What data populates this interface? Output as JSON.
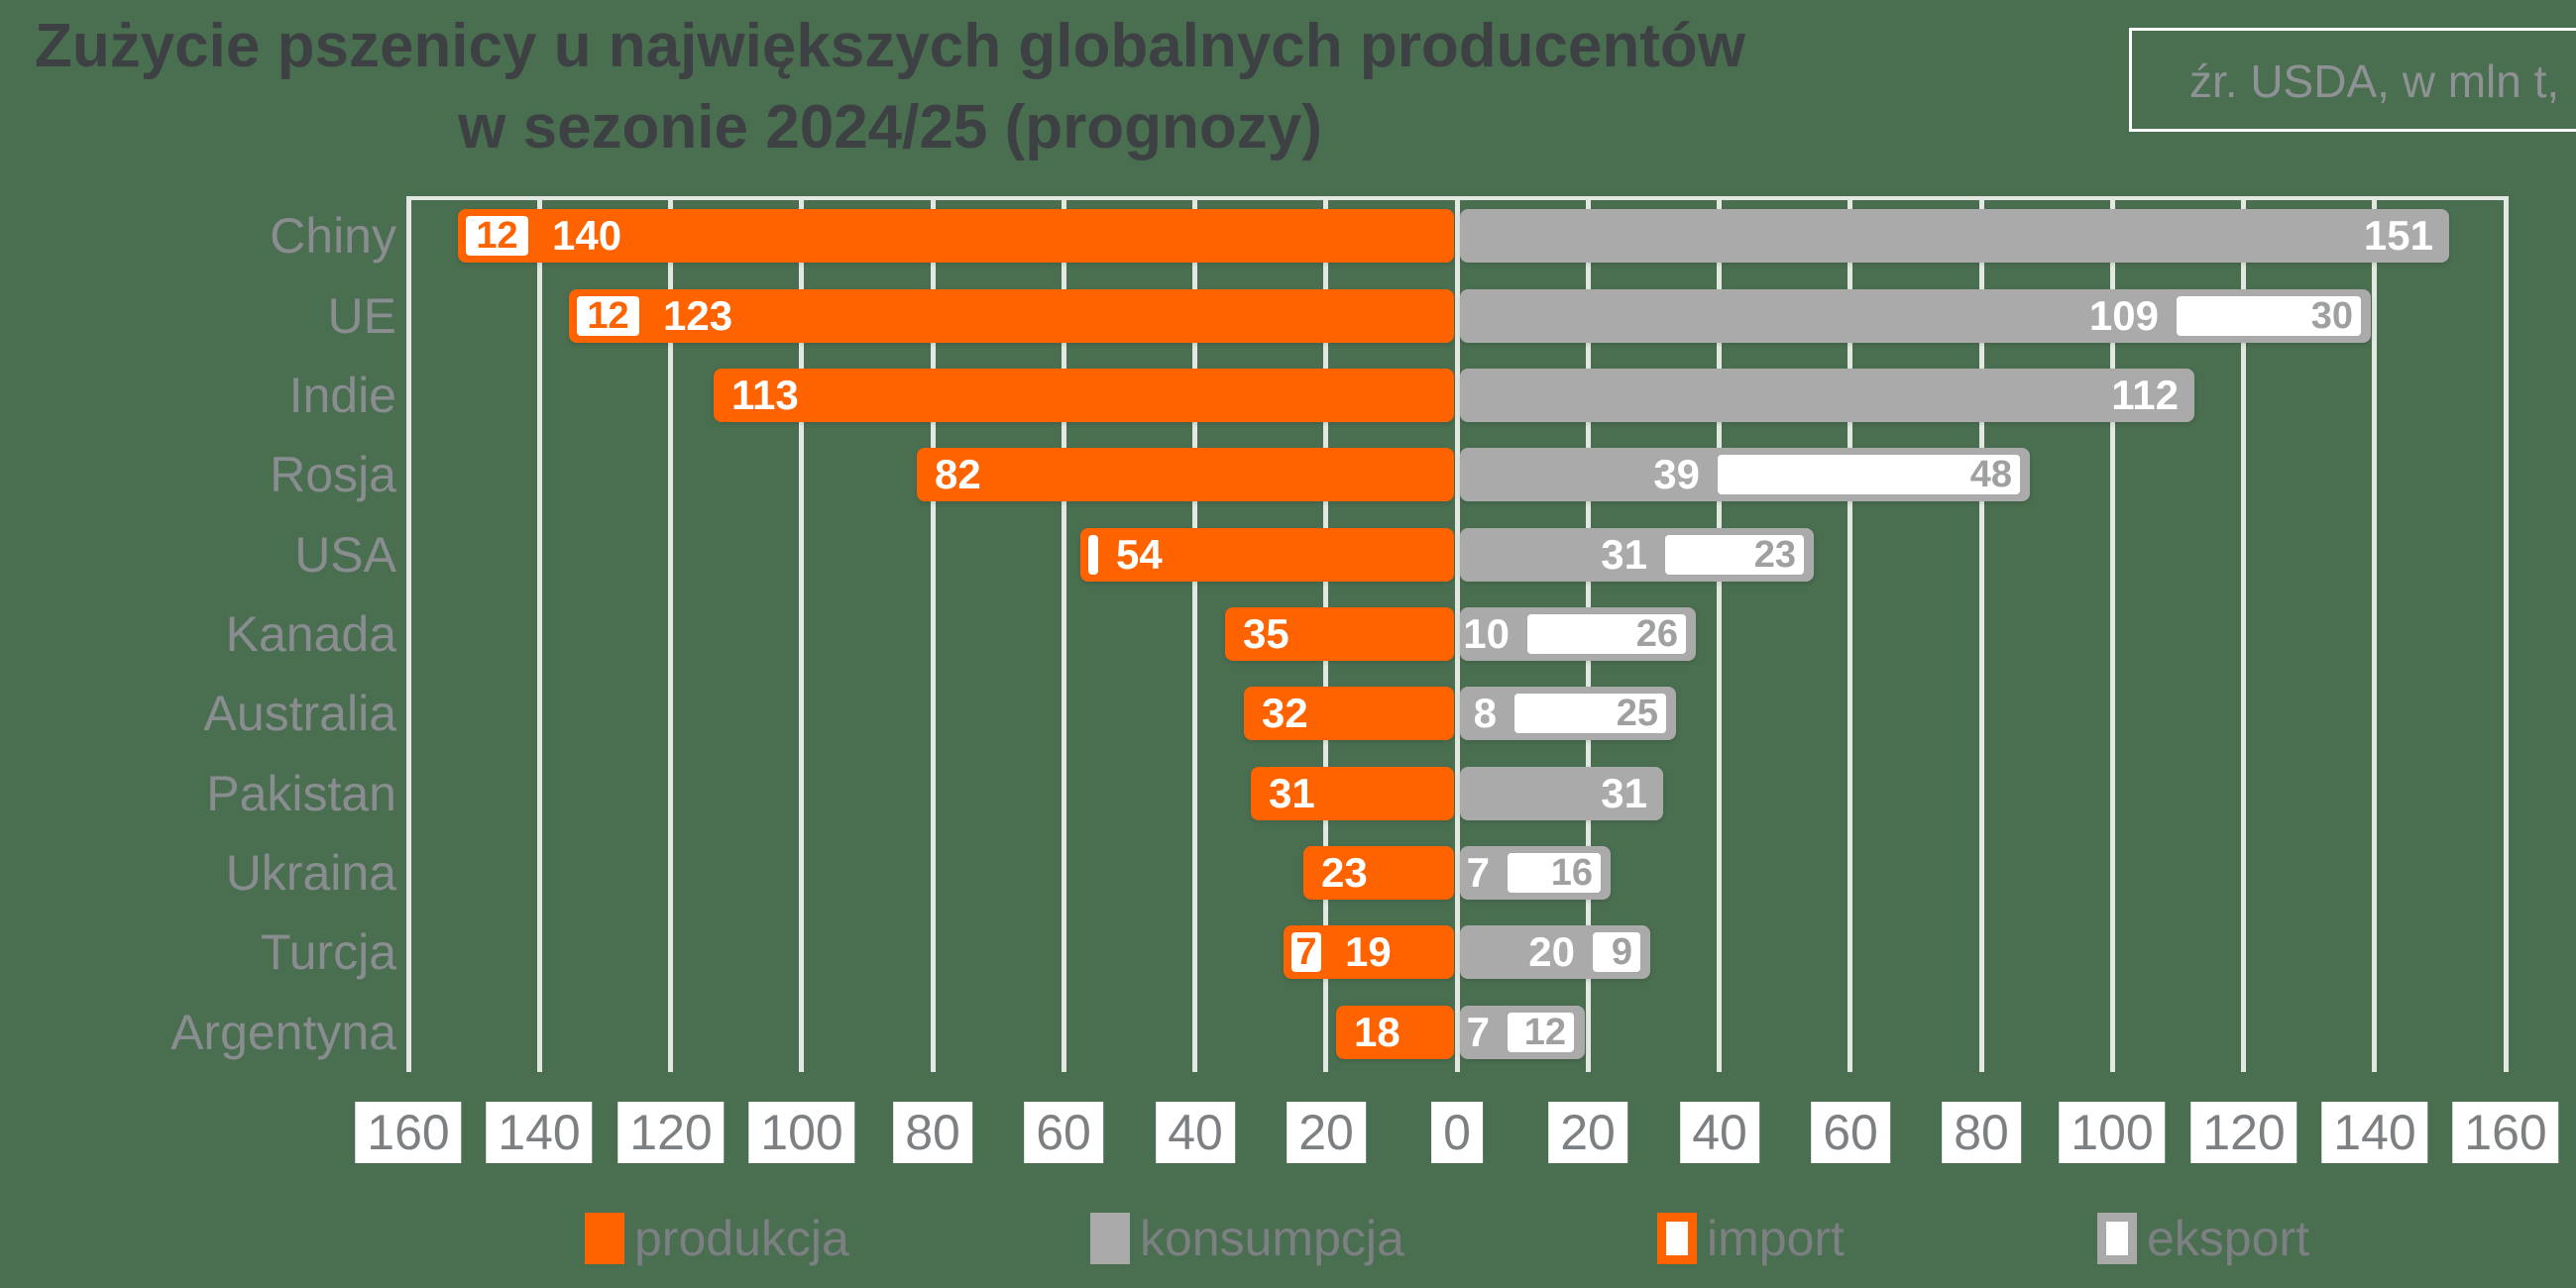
{
  "title": {
    "line1": "Zużycie pszenicy u największych globalnych producentów",
    "line2": "w sezonie 2024/25 (prognozy)"
  },
  "source_note": "źr. USDA, w mln t,",
  "axis": {
    "tick_labels": [
      "160",
      "140",
      "120",
      "100",
      "80",
      "60",
      "40",
      "20",
      "0",
      "20",
      "40",
      "60",
      "80",
      "100",
      "120",
      "140",
      "160"
    ],
    "tick_values": [
      -160,
      -140,
      -120,
      -100,
      -80,
      -60,
      -40,
      -20,
      0,
      20,
      40,
      60,
      80,
      100,
      120,
      140,
      160
    ]
  },
  "legend": {
    "items": [
      {
        "label": "produkcja",
        "swatch": "solid-orange"
      },
      {
        "label": "konsumpcja",
        "swatch": "solid-gray"
      },
      {
        "label": "import",
        "swatch": "outline-orange"
      },
      {
        "label": "eksport",
        "swatch": "outline-gray"
      }
    ]
  },
  "colors": {
    "background": "#4a6e50",
    "produkcja": "#ff6300",
    "konsumpcja": "#a9aaa9",
    "import_eksport_fill": "#ffffff",
    "gridline": "#e3e8e2",
    "title_text": "#3e4143",
    "axis_text": "#7d8082"
  },
  "chart_data": {
    "type": "bar",
    "orientation": "horizontal-diverging",
    "unit": "mln t",
    "title": "Zużycie pszenicy u największych globalnych producentów w sezonie 2024/25 (prognozy)",
    "xlim": [
      -160,
      160
    ],
    "grid": true,
    "legend_position": "bottom",
    "categories": [
      "Chiny",
      "UE",
      "Indie",
      "Rosja",
      "USA",
      "Kanada",
      "Australia",
      "Pakistan",
      "Ukraina",
      "Turcja",
      "Argentyna"
    ],
    "series": [
      {
        "name": "produkcja",
        "side": "left",
        "color": "#ff6300",
        "values": [
          140,
          123,
          113,
          82,
          54,
          35,
          32,
          31,
          23,
          19,
          18
        ],
        "labels": [
          "140",
          "123",
          "113",
          "82",
          "54",
          "35",
          "32",
          "31",
          "23",
          "19",
          "18"
        ]
      },
      {
        "name": "import",
        "side": "left-stacked",
        "color": "#ffffff",
        "values": [
          12,
          12,
          0,
          0,
          3,
          0,
          0,
          0,
          0,
          7,
          0
        ],
        "labels": [
          "12",
          "12",
          "",
          "",
          "",
          "",
          "",
          "",
          "",
          "7",
          ""
        ]
      },
      {
        "name": "konsumpcja",
        "side": "right",
        "color": "#a9aaa9",
        "values": [
          151,
          109,
          112,
          39,
          31,
          10,
          8,
          31,
          7,
          20,
          7
        ],
        "labels": [
          "151",
          "109",
          "112",
          "39",
          "31",
          "10",
          "8",
          "31",
          "7",
          "20",
          "7"
        ]
      },
      {
        "name": "eksport",
        "side": "right-stacked",
        "color": "#ffffff",
        "values": [
          0,
          30,
          0,
          48,
          23,
          26,
          25,
          0,
          16,
          9,
          12
        ],
        "labels": [
          "",
          "30",
          "",
          "48",
          "23",
          "26",
          "25",
          "",
          "16",
          "9",
          "12"
        ]
      }
    ]
  }
}
